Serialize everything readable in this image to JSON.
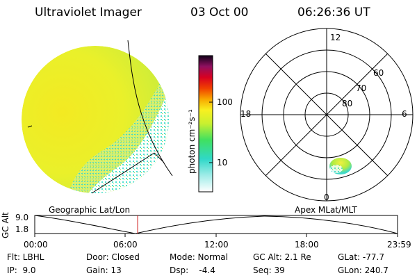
{
  "header": {
    "instrument": "Ultraviolet Imager",
    "date": "03 Oct 00",
    "time": "06:26:36 UT"
  },
  "colorbar": {
    "label": "photon cm⁻²s⁻¹",
    "ticks": [
      "100",
      "10"
    ]
  },
  "polar_plot": {
    "mlt_labels": {
      "top": "12",
      "left": "18",
      "right": "6",
      "bottom": "0"
    },
    "lat_labels": [
      "60",
      "70",
      "80"
    ]
  },
  "panel_labels": {
    "left": "Geographic Lat/Lon",
    "right": "Apex MLat/MLT"
  },
  "altitude_plot": {
    "ylabel": "GC Alt",
    "yticks": [
      "9.0",
      "1.8"
    ],
    "xticks": [
      "00:00",
      "06:00",
      "12:00",
      "18:00",
      "23:59"
    ]
  },
  "info": {
    "flt": "Flt: LBHL",
    "ip": "IP:  9.0",
    "door": "Door: Closed",
    "gain": "Gain: 13",
    "mode": "Mode: Normal",
    "dsp": "Dsp:    -4.4",
    "gc_alt": "GC Alt: 2.1 Re",
    "seq": "Seq: 39",
    "glat": "GLat: -77.7",
    "glon": "GLon: 240.7"
  }
}
